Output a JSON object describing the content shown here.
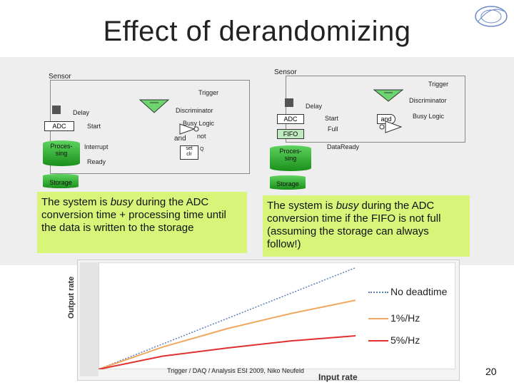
{
  "slide": {
    "title": "Effect of derandomizing",
    "footer": "Trigger / DAQ / Analysis ESI 2009, Niko Neufeld",
    "page_number": "20"
  },
  "left_diagram": {
    "sensor": "Sensor",
    "trigger": "Trigger",
    "discriminator": "Discriminator",
    "delay": "Delay",
    "adc": "ADC",
    "start": "Start",
    "busy_logic": "Busy Logic",
    "and": "and",
    "not": "not",
    "set": "set",
    "clear": "clr",
    "q": "Q",
    "processing": "Proces-\nsing",
    "interrupt": "Interrupt",
    "ready": "Ready",
    "storage": "Storage"
  },
  "right_diagram": {
    "sensor": "Sensor",
    "trigger": "Trigger",
    "discriminator": "Discriminator",
    "delay": "Delay",
    "adc": "ADC",
    "start": "Start",
    "fifo": "FIFO",
    "full": "Full",
    "and": "and",
    "busy_logic": "Busy Logic",
    "data_ready": "DataReady",
    "processing": "Proces-\nsing",
    "storage": "Storage"
  },
  "notes": {
    "left_pre": "The system is ",
    "left_em": "busy",
    "left_post": " during the ADC conversion time + processing time until the data is written to the storage",
    "right_pre": "The system is ",
    "right_em": "busy",
    "right_post": " during the ADC conversion time if the FIFO is not full (assuming the storage can always follow!)"
  },
  "colors": {
    "no_deadtime": "#5b7fb5",
    "one_percent": "#f0a860",
    "five_percent": "#e03030",
    "note_bg": "#d8f57a"
  },
  "chart_data": {
    "type": "line",
    "title": "",
    "xlabel": "Input rate",
    "ylabel": "Output rate",
    "grid": false,
    "legend": "right",
    "series": [
      {
        "name": "No deadtime",
        "style": "dotted",
        "x": [
          0,
          0.25,
          0.5,
          0.75,
          1.0
        ],
        "values": [
          0,
          0.25,
          0.5,
          0.75,
          1.0
        ]
      },
      {
        "name": "1%/Hz",
        "style": "solid",
        "x": [
          0,
          0.25,
          0.5,
          0.75,
          1.0
        ],
        "values": [
          0,
          0.22,
          0.4,
          0.55,
          0.68
        ]
      },
      {
        "name": "5%/Hz",
        "style": "solid",
        "x": [
          0,
          0.25,
          0.5,
          0.75,
          1.0
        ],
        "values": [
          0,
          0.13,
          0.21,
          0.28,
          0.33
        ]
      }
    ]
  }
}
